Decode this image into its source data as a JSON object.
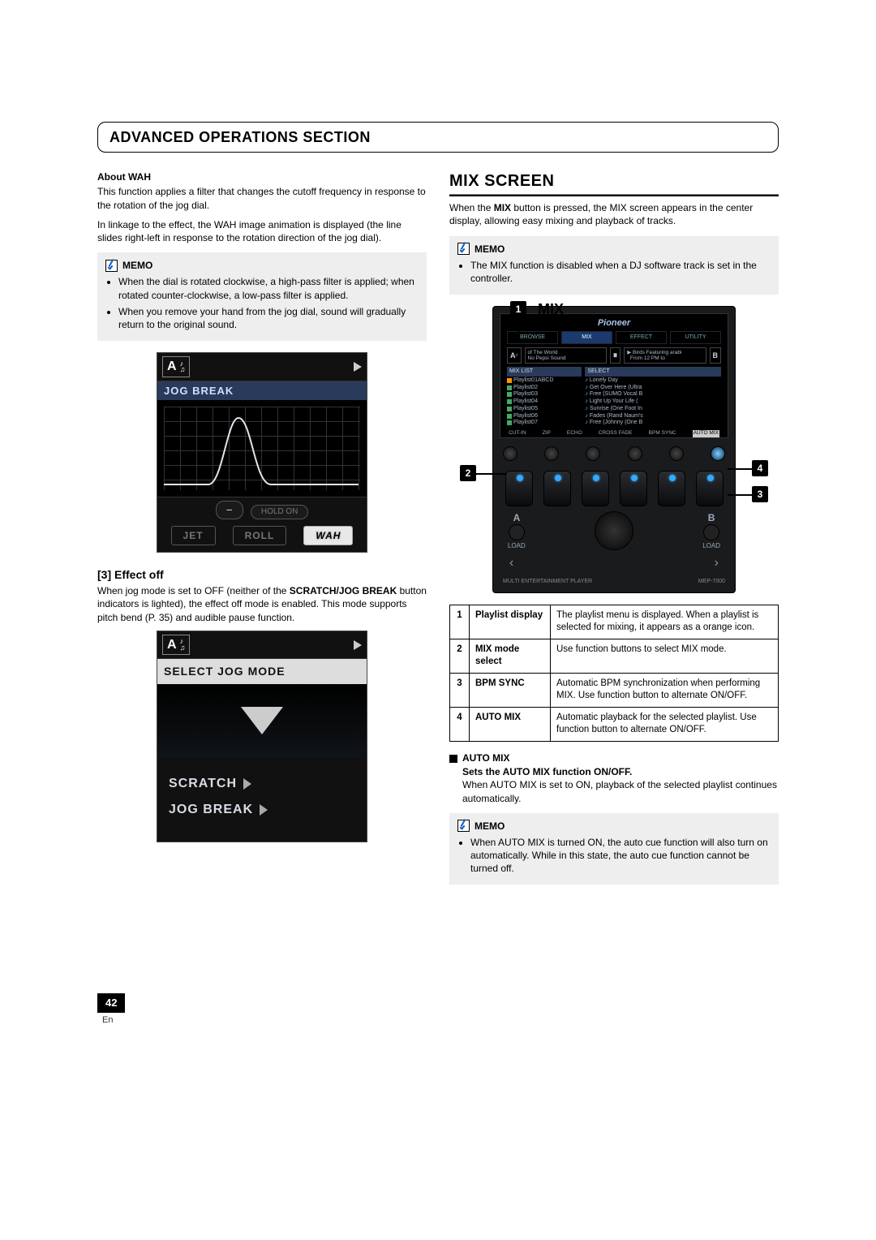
{
  "section_title": "ADVANCED OPERATIONS SECTION",
  "left": {
    "about_wah_head": "About WAH",
    "about_wah_p1": "This function applies a filter that changes the cutoff frequency in response to the rotation of the jog dial.",
    "about_wah_p2": "In linkage to the effect, the WAH image animation is displayed (the line slides right-left in response to the rotation direction of the jog dial).",
    "memo_label": "MEMO",
    "memo1_li1": "When the dial is rotated clockwise, a high-pass filter is applied; when rotated counter-clockwise, a low-pass filter is applied.",
    "memo1_li2": "When you remove your hand from the jog dial, sound will gradually return to the original sound.",
    "fig1": {
      "deck": "A",
      "jogbreak": "JOG BREAK",
      "holdon": "HOLD ON",
      "btn_jet": "JET",
      "btn_roll": "ROLL",
      "btn_wah": "WAH"
    },
    "s3_head": "[3] Effect off",
    "s3_p_a": "When jog mode is set to OFF (neither of the ",
    "s3_p_bold": "SCRATCH/JOG BREAK",
    "s3_p_b": " button indicators is lighted), the effect off mode is enabled. This mode supports pitch bend (P. 35) and audible pause function.",
    "fig2": {
      "deck": "A",
      "select": "SELECT JOG MODE",
      "scratch": "SCRATCH",
      "jogbreak": "JOG BREAK"
    }
  },
  "right": {
    "mix_title": "MIX SCREEN",
    "mix_p_a": "When the ",
    "mix_p_bold": "MIX",
    "mix_p_b": " button is pressed, the MIX screen appears in the center display, allowing easy mixing and playback of tracks.",
    "memo_label": "MEMO",
    "memo2_li1": "The MIX function is disabled when a DJ software track is set in the controller.",
    "callouts": {
      "c1": "1",
      "c2": "2",
      "c3": "3",
      "c4": "4",
      "mix": "MIX"
    },
    "device": {
      "logo": "Pioneer",
      "tabs": [
        "BROWSE",
        "MIX",
        "EFFECT",
        "UTILITY"
      ],
      "left_head": "MIX LIST",
      "right_head": "SELECT",
      "llist": [
        "Playlist01ABCD",
        "Playlist02",
        "Playlist03",
        "Playlist04",
        "Playlist05",
        "Playlist06",
        "Playlist07"
      ],
      "rlist": [
        "Lonely Day",
        "Get Over Here (Ultra",
        "Free (SUMO Vocal B",
        "Light Up Your Life (",
        "Sunrise (One Foot In",
        "Fades (Rand Naum's",
        "Free (Johnny (One B"
      ],
      "fx": [
        "CUT-IN",
        "ZIP",
        "ECHO",
        "CROSS FADE",
        "BPM SYNC",
        "AUTO MIX"
      ],
      "loadA": "A",
      "loadB": "B",
      "load": "LOAD",
      "foot_l": "MULTI ENTERTAINMENT PLAYER",
      "foot_r": "MEP-7000"
    },
    "table": {
      "r1n": "1",
      "r1k": "Playlist display",
      "r1v": "The playlist menu is displayed. When a playlist is selected for mixing, it appears as a orange icon.",
      "r2n": "2",
      "r2k": "MIX mode select",
      "r2v": "Use function buttons to select MIX mode.",
      "r3n": "3",
      "r3k": "BPM SYNC",
      "r3v": "Automatic BPM synchronization when performing MIX. Use function button to alternate ON/OFF.",
      "r4n": "4",
      "r4k": "AUTO MIX",
      "r4v": "Automatic playback for the selected playlist. Use function button to alternate ON/OFF."
    },
    "automix_head": "AUTO MIX",
    "automix_sub": "Sets the AUTO MIX function ON/OFF.",
    "automix_p": "When AUTO MIX is set to ON, playback of the selected playlist continues automatically.",
    "memo3_li1": "When AUTO MIX is turned ON, the auto cue function will also turn on automatically. While in this state, the auto cue function cannot be turned off."
  },
  "page": {
    "num": "42",
    "lang": "En"
  }
}
